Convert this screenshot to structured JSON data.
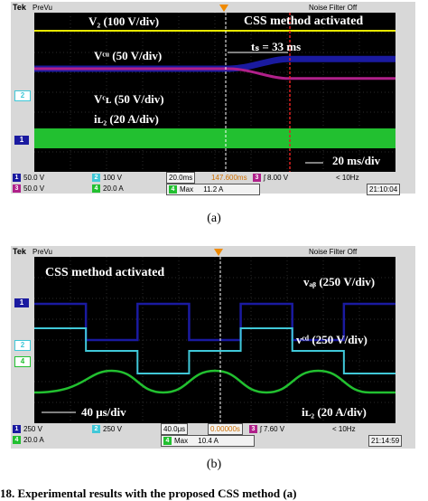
{
  "chart_data": [
    {
      "type": "line",
      "panel": "a",
      "header": {
        "brand": "Tek",
        "mode": "PreVu",
        "filter": "Noise Filter Off"
      },
      "trigger_marker": "T",
      "annotations": {
        "v2": "V₂ (100 V/div)",
        "css": "CSS method activated",
        "ts": "tₛ = 33 ms",
        "vcu": "Vᶜᵘ (50 V/div)",
        "vcl": "Vᶜʟ (50 V/div)",
        "il2": "iʟ₂ (20 A/div)",
        "div": "20 ms/div"
      },
      "channel_markers": [
        "2",
        "1"
      ],
      "series": [
        {
          "name": "V₂",
          "color": "#e8e800",
          "values": [
            100,
            100
          ]
        },
        {
          "name": "Vᶜᵘ",
          "color": "#1a1aa0",
          "values": [
            100,
            100,
            130,
            130
          ]
        },
        {
          "name": "Vᶜʟ",
          "color": "#b0208a",
          "values": [
            100,
            100,
            70,
            70
          ]
        },
        {
          "name": "iʟ₂",
          "color": "#22c030",
          "values": [
            0,
            0
          ]
        }
      ],
      "status": {
        "ch1": {
          "num": "1",
          "val": "50.0 V"
        },
        "ch2": {
          "num": "2",
          "val": "100 V"
        },
        "ch3": {
          "num": "3",
          "val": "50.0 V"
        },
        "ch4": {
          "num": "4",
          "val": "20.0 A"
        },
        "timebase": "20.0ms",
        "delay": "147.600ms",
        "trig": {
          "num": "3",
          "val": "ʃ 8.00 V"
        },
        "bw": "< 10Hz",
        "max_label": "Max",
        "max_num": "4",
        "max_val": "11.2 A",
        "clock": "21:10:04"
      },
      "colors": {
        "ch1": "#1a1aa0",
        "ch2": "#40c8d8",
        "ch3": "#b0208a",
        "ch4": "#22c030",
        "trigger": "#f08a00"
      }
    },
    {
      "type": "line",
      "panel": "b",
      "header": {
        "brand": "Tek",
        "mode": "PreVu",
        "filter": "Noise Filter Off"
      },
      "trigger_marker": "T",
      "annotations": {
        "css": "CSS method activated",
        "vab": "vₐᵦ (250 V/div)",
        "vcd": "vᶜᵈ (250 V/div)",
        "il2": "iʟ₂ (20 A/div)",
        "div": "40 μs/div"
      },
      "channel_markers": [
        "1",
        "2",
        "4"
      ],
      "series": [
        {
          "name": "vₐᵦ",
          "color": "#1a1aa0",
          "values": [
            250,
            -250,
            250,
            -250,
            250,
            -250,
            250
          ]
        },
        {
          "name": "vᶜᵈ",
          "color": "#40c8d8",
          "values": [
            250,
            0,
            -250,
            0,
            250,
            0,
            -250
          ]
        },
        {
          "name": "iʟ₂",
          "color": "#22c030",
          "values": [
            -20,
            20,
            -20,
            20,
            -20,
            20,
            -20
          ]
        }
      ],
      "status": {
        "ch1": {
          "num": "1",
          "val": "250 V"
        },
        "ch2": {
          "num": "2",
          "val": "250 V"
        },
        "ch4": {
          "num": "4",
          "val": "20.0 A"
        },
        "timebase": "40.0μs",
        "delay": "0.00000s",
        "trig": {
          "num": "3",
          "val": "ʃ 7.60 V"
        },
        "bw": "< 10Hz",
        "max_label": "Max",
        "max_num": "4",
        "max_val": "10.4 A",
        "clock": "21:14:59"
      },
      "colors": {
        "ch1": "#1a1aa0",
        "ch2": "#40c8d8",
        "ch4": "#22c030",
        "trigger": "#f08a00"
      }
    }
  ],
  "captions": {
    "a": "(a)",
    "b": "(b)"
  },
  "footer": "18.  Experimental results with the proposed CSS method (a)"
}
